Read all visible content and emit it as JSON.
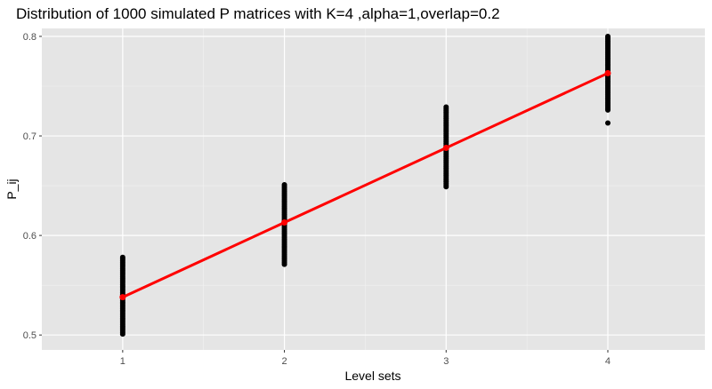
{
  "chart_data": {
    "type": "scatter",
    "title": "Distribution of 1000 simulated P matrices with K=4 ,alpha=1,overlap=0.2",
    "xlabel": "Level sets",
    "ylabel": "P_ij",
    "x_ticks": [
      "1",
      "2",
      "3",
      "4"
    ],
    "y_ticks": [
      "0.5",
      "0.6",
      "0.7",
      "0.8"
    ],
    "xlim": [
      0.5,
      4.6
    ],
    "ylim": [
      0.485,
      0.808
    ],
    "grid": true,
    "background": "#e5e5e5",
    "point_color": "#000000",
    "line_color": "#ff0000",
    "series": [
      {
        "name": "simulated points",
        "type": "scatter",
        "x": [
          1,
          2,
          3,
          4
        ],
        "y_ranges": [
          [
            0.501,
            0.578
          ],
          [
            0.571,
            0.651
          ],
          [
            0.649,
            0.729
          ],
          [
            0.726,
            0.8
          ]
        ],
        "outliers": [
          [
            4,
            0.713
          ]
        ]
      },
      {
        "name": "mean",
        "type": "line",
        "x": [
          1,
          2,
          3,
          4
        ],
        "y": [
          0.538,
          0.613,
          0.688,
          0.763
        ]
      }
    ]
  }
}
